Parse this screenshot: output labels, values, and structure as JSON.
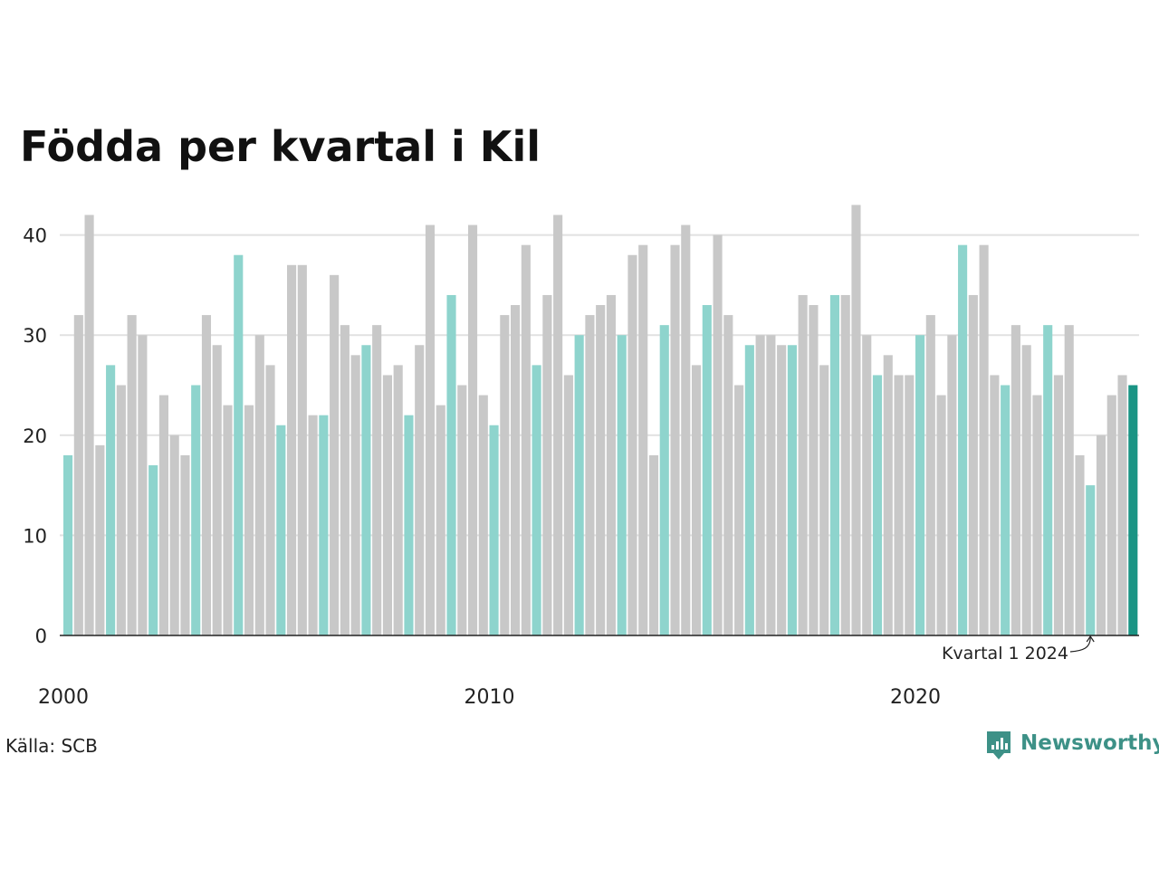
{
  "chart_data": {
    "type": "bar",
    "title": "Födda per kvartal i Kil",
    "xlabel": "",
    "ylabel": "",
    "ylim": [
      0,
      44
    ],
    "yticks": [
      0,
      10,
      20,
      30,
      40
    ],
    "grid": true,
    "xticks": [
      {
        "label": "2000",
        "year": 2000
      },
      {
        "label": "2010",
        "year": 2010
      },
      {
        "label": "2020",
        "year": 2020
      }
    ],
    "start_year": 2000,
    "start_quarter": 1,
    "values": [
      18,
      32,
      42,
      19,
      27,
      25,
      32,
      30,
      17,
      24,
      20,
      18,
      25,
      32,
      29,
      23,
      38,
      23,
      30,
      27,
      21,
      37,
      37,
      22,
      22,
      36,
      31,
      28,
      29,
      31,
      26,
      27,
      22,
      29,
      41,
      23,
      34,
      25,
      41,
      24,
      21,
      32,
      33,
      39,
      27,
      34,
      42,
      26,
      30,
      32,
      33,
      34,
      30,
      38,
      39,
      18,
      31,
      39,
      41,
      27,
      33,
      40,
      32,
      25,
      29,
      30,
      30,
      29,
      29,
      34,
      33,
      27,
      34,
      34,
      43,
      30,
      26,
      28,
      26,
      26,
      30,
      32,
      24,
      30,
      39,
      34,
      39,
      26,
      25,
      31,
      29,
      24,
      31,
      26,
      31,
      18,
      15,
      20,
      24,
      26,
      25
    ],
    "colors": {
      "q1": "#8ed4cd",
      "other": "#c8c8c8",
      "latest": "#1a9484",
      "grid": "#e1e1e1",
      "axis": "#222222"
    },
    "annotation": {
      "label": "Kvartal 1 2024"
    }
  },
  "source": "Källa: SCB",
  "brand": {
    "name": "Newsworthy",
    "color": "#3d9187"
  }
}
